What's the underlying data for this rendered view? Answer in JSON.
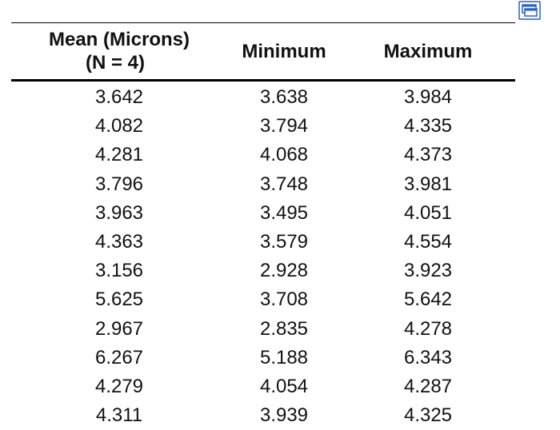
{
  "toolbar": {
    "popout_icon": "popout-window-icon",
    "accent_color": "#2b62b8"
  },
  "table": {
    "headers": {
      "mean_line1": "Mean (Microns)",
      "mean_line2": "(N = 4)",
      "minimum": "Minimum",
      "maximum": "Maximum"
    },
    "rows": [
      [
        "3.642",
        "3.638",
        "3.984"
      ],
      [
        "4.082",
        "3.794",
        "4.335"
      ],
      [
        "4.281",
        "4.068",
        "4.373"
      ],
      [
        "3.796",
        "3.748",
        "3.981"
      ],
      [
        "3.963",
        "3.495",
        "4.051"
      ],
      [
        "4.363",
        "3.579",
        "4.554"
      ],
      [
        "3.156",
        "2.928",
        "3.923"
      ],
      [
        "5.625",
        "3.708",
        "5.642"
      ],
      [
        "2.967",
        "2.835",
        "4.278"
      ],
      [
        "6.267",
        "5.188",
        "6.343"
      ],
      [
        "4.279",
        "4.054",
        "4.287"
      ],
      [
        "4.311",
        "3.939",
        "4.325"
      ]
    ]
  }
}
